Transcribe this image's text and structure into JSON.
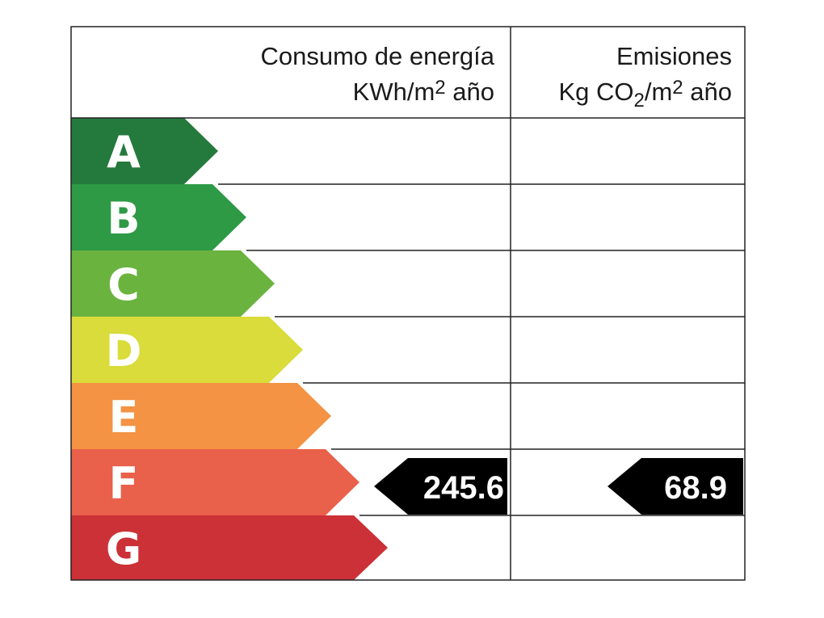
{
  "header": {
    "energy_title": "Consumo de energía",
    "energy_unit": [
      "KWh/m",
      "2",
      " año"
    ],
    "emissions_title": "Emisiones",
    "emissions_unit": [
      "Kg CO",
      "2",
      "/m",
      "2",
      " año"
    ]
  },
  "ratings": [
    {
      "letter": "A",
      "color": "#247a3c"
    },
    {
      "letter": "B",
      "color": "#2e9a46"
    },
    {
      "letter": "C",
      "color": "#6bb33f"
    },
    {
      "letter": "D",
      "color": "#d9dc3a"
    },
    {
      "letter": "E",
      "color": "#f39343"
    },
    {
      "letter": "F",
      "color": "#e9604b"
    },
    {
      "letter": "G",
      "color": "#cc3137"
    }
  ],
  "energy_value": 245.6,
  "emissions_value": 68.9
}
